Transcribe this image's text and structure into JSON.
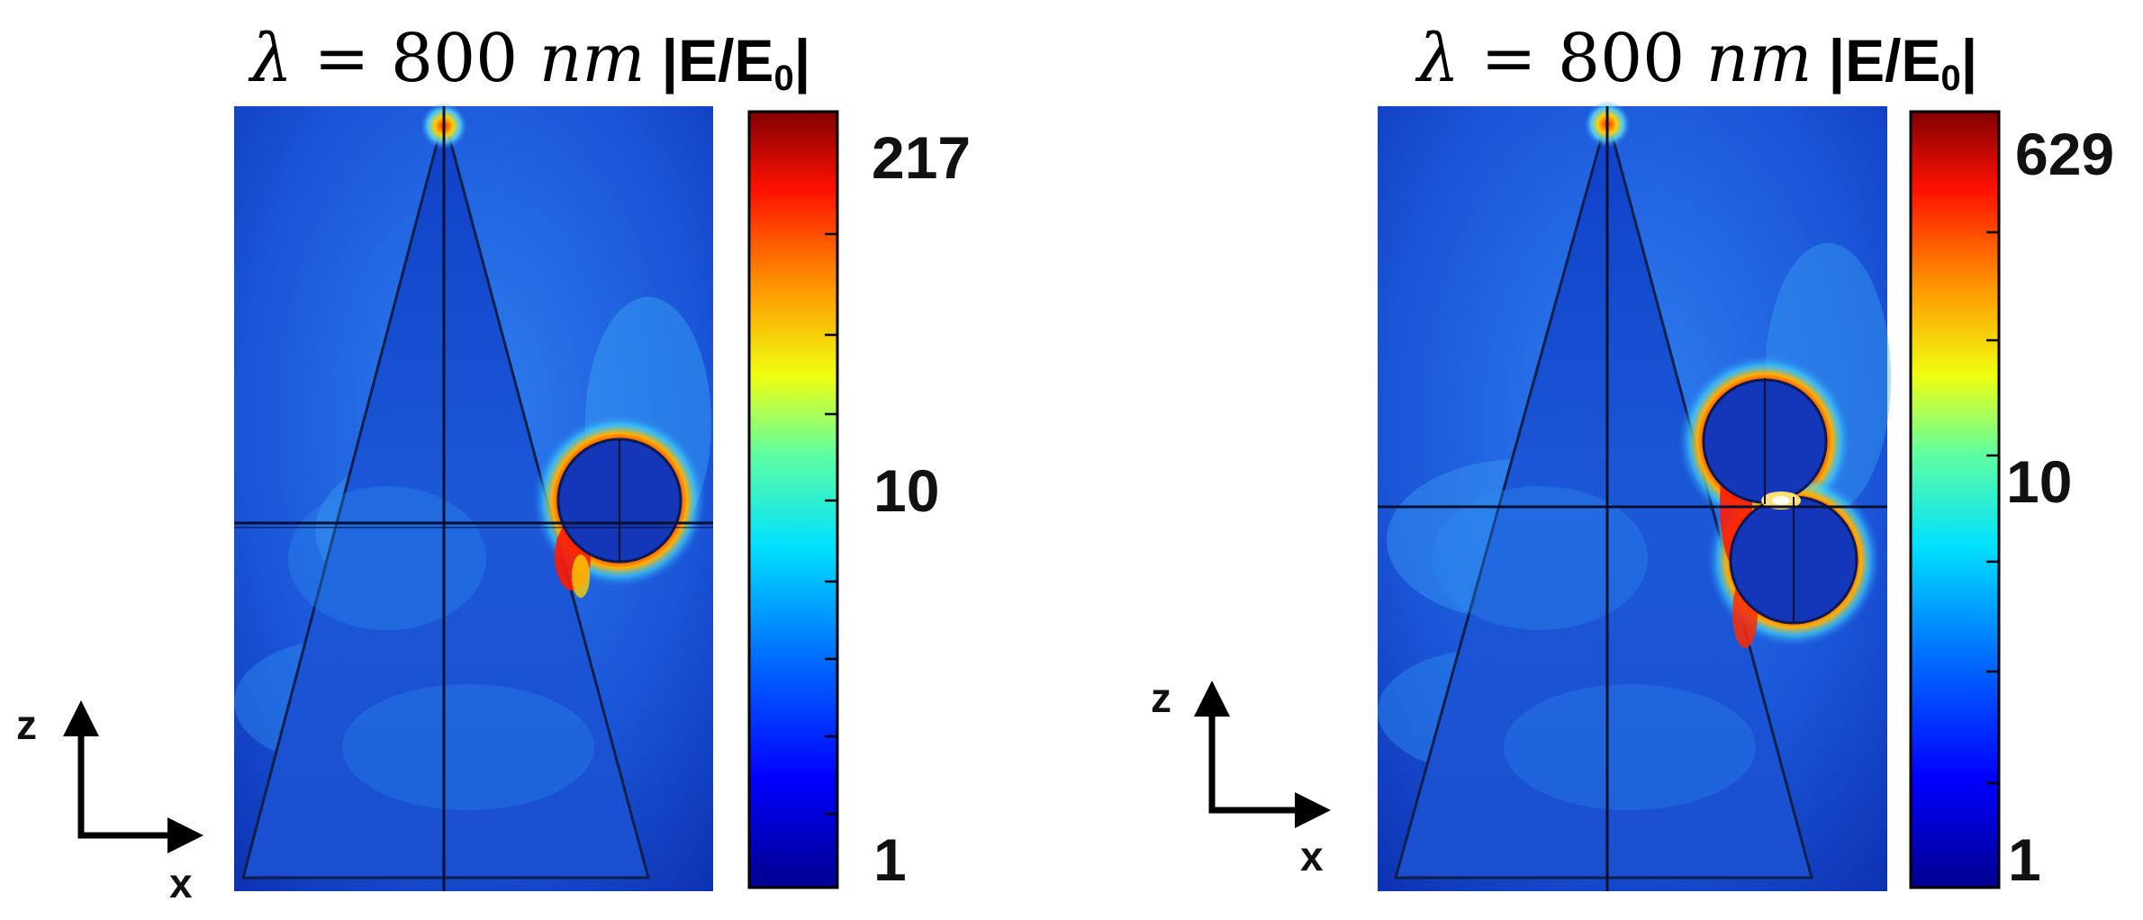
{
  "panels": [
    {
      "title": {
        "lambda": "λ",
        "equals": "=",
        "value": "800",
        "unit": "nm",
        "quantity_prefix": "|E/E",
        "quantity_sub": "0",
        "quantity_suffix": "|"
      },
      "colorbar": {
        "max_label": "217",
        "mid_label": "10",
        "min_label": "1"
      },
      "axes": {
        "z": "z",
        "x": "x"
      }
    },
    {
      "title": {
        "lambda": "λ",
        "equals": "=",
        "value": "800",
        "unit": "nm",
        "quantity_prefix": "|E/E",
        "quantity_sub": "0",
        "quantity_suffix": "|"
      },
      "colorbar": {
        "max_label": "629",
        "mid_label": "10",
        "min_label": "1"
      },
      "axes": {
        "z": "z",
        "x": "x"
      }
    }
  ],
  "colors": {
    "field_background": "#1f5fe0",
    "field_dark": "#0b1f9a",
    "colormap": [
      "#00008f",
      "#0000ff",
      "#0080ff",
      "#00ffff",
      "#80ff80",
      "#ffff00",
      "#ff8000",
      "#ff0000",
      "#800000"
    ]
  }
}
